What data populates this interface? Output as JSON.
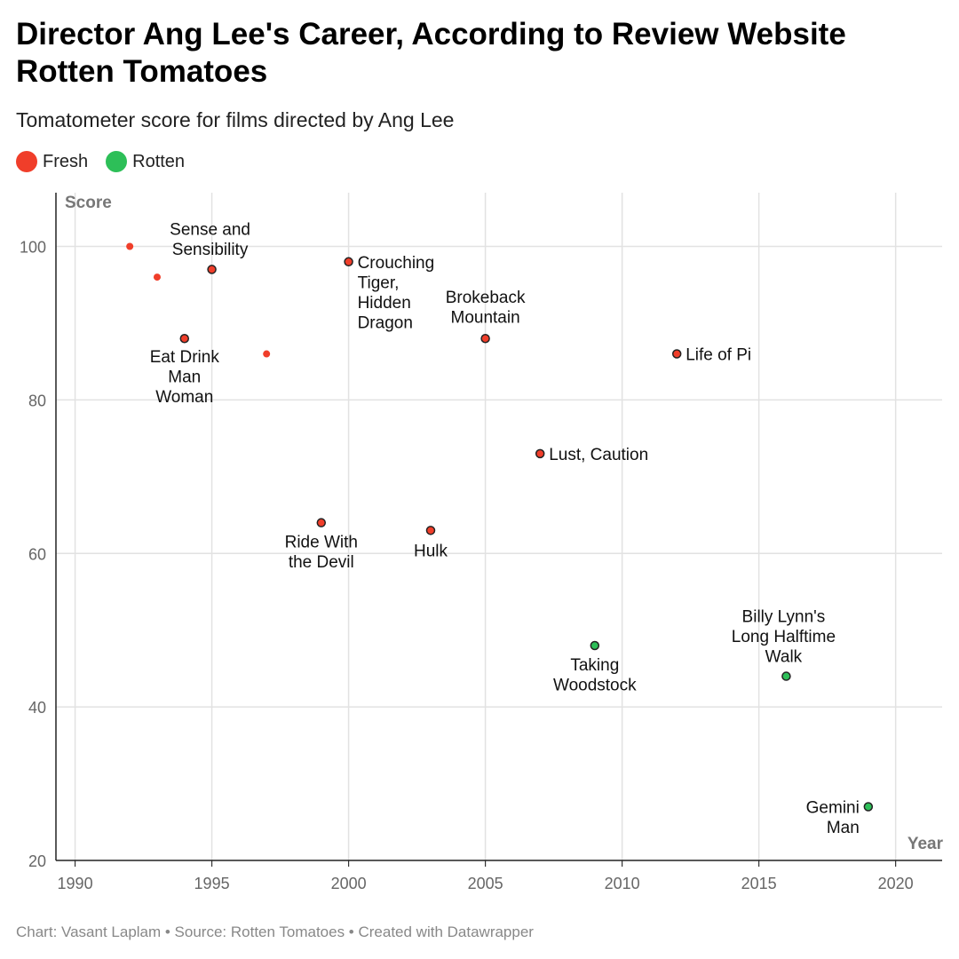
{
  "title": "Director Ang Lee's Career, According to Review Website Rotten Tomatoes",
  "subtitle": "Tomatometer score for films directed by Ang Lee",
  "legend": [
    {
      "label": "Fresh",
      "color": "#f03e2a"
    },
    {
      "label": "Rotten",
      "color": "#2dbf58"
    }
  ],
  "footer": "Chart: Vasant Laplam • Source: Rotten Tomatoes • Created with Datawrapper",
  "chart_data": {
    "type": "scatter",
    "title": "Director Ang Lee's Career, According to Review Website Rotten Tomatoes",
    "subtitle": "Tomatometer score for films directed by Ang Lee",
    "xlabel": "Year",
    "ylabel": "Score",
    "xlim": [
      1989.3,
      2021.7
    ],
    "ylim": [
      20,
      107
    ],
    "xticks": [
      1990,
      1995,
      2000,
      2005,
      2010,
      2015,
      2020
    ],
    "yticks": [
      20,
      40,
      60,
      80,
      100
    ],
    "grid": true,
    "legend_position": "top-left",
    "series": [
      {
        "name": "Fresh",
        "color": "#f03e2a",
        "points": [
          {
            "x": 1992,
            "y": 100,
            "label": ""
          },
          {
            "x": 1993,
            "y": 96,
            "label": ""
          },
          {
            "x": 1994,
            "y": 88,
            "label": "Eat Drink Man Woman"
          },
          {
            "x": 1995,
            "y": 97,
            "label": "Sense and Sensibility"
          },
          {
            "x": 1997,
            "y": 86,
            "label": ""
          },
          {
            "x": 1999,
            "y": 64,
            "label": "Ride With the Devil"
          },
          {
            "x": 2000,
            "y": 98,
            "label": "Crouching Tiger, Hidden Dragon"
          },
          {
            "x": 2003,
            "y": 63,
            "label": "Hulk"
          },
          {
            "x": 2005,
            "y": 88,
            "label": "Brokeback Mountain"
          },
          {
            "x": 2007,
            "y": 73,
            "label": "Lust, Caution"
          },
          {
            "x": 2012,
            "y": 86,
            "label": "Life of Pi"
          }
        ]
      },
      {
        "name": "Rotten",
        "color": "#2dbf58",
        "points": [
          {
            "x": 2009,
            "y": 48,
            "label": "Taking Woodstock"
          },
          {
            "x": 2016,
            "y": 44,
            "label": "Billy Lynn's Long Halftime Walk"
          },
          {
            "x": 2019,
            "y": 27,
            "label": "Gemini Man"
          }
        ]
      }
    ]
  }
}
